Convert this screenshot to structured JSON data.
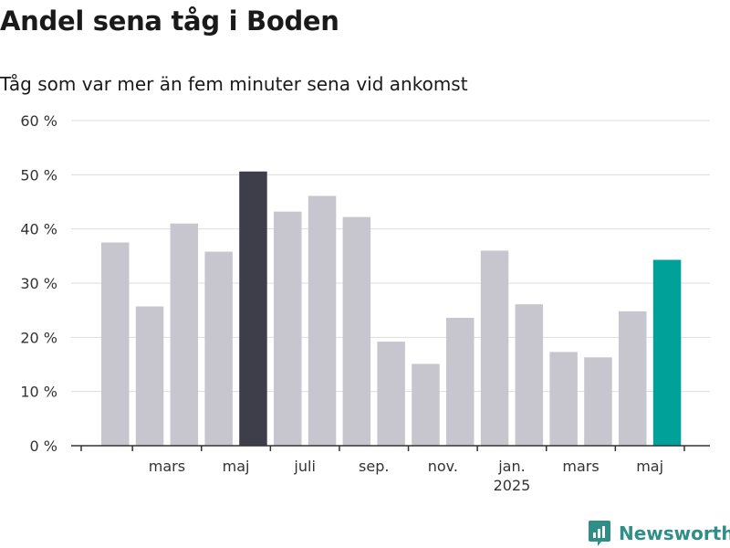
{
  "header": {
    "title": "Andel sena tåg i Boden",
    "subtitle": "Tåg som var mer än fem minuter sena vid ankomst"
  },
  "brand": {
    "name": "Newsworthy",
    "icon": "newsworthy-logo-icon",
    "color": "#2f8f88"
  },
  "chart_data": {
    "type": "bar",
    "title": "Andel sena tåg i Boden",
    "subtitle": "Tåg som var mer än fem minuter sena vid ankomst",
    "xlabel": "",
    "ylabel": "",
    "ylim": [
      0,
      60
    ],
    "yticks": [
      0,
      10,
      20,
      30,
      40,
      50,
      60
    ],
    "ytick_labels": [
      "0 %",
      "10 %",
      "20 %",
      "30 %",
      "40 %",
      "50 %",
      "60 %"
    ],
    "grid": true,
    "values": [
      37.5,
      25.7,
      41.0,
      35.8,
      50.6,
      43.2,
      46.1,
      42.2,
      19.2,
      15.1,
      23.6,
      36.0,
      26.1,
      17.3,
      16.3,
      24.8,
      34.3
    ],
    "highlight": {
      "max_index": 4,
      "latest_index": 16
    },
    "x_tick_labels": [
      {
        "after_bar": 1,
        "label": "mars"
      },
      {
        "after_bar": 3,
        "label": "maj"
      },
      {
        "after_bar": 5,
        "label": "juli"
      },
      {
        "after_bar": 7,
        "label": "sep."
      },
      {
        "after_bar": 9,
        "label": "nov."
      },
      {
        "after_bar": 11,
        "label": "jan.",
        "sublabel": "2025"
      },
      {
        "after_bar": 13,
        "label": "mars"
      },
      {
        "after_bar": 15,
        "label": "maj"
      }
    ],
    "colors": {
      "default": "#c7c6ce",
      "highlight_max": "#3e3d4a",
      "highlight_latest": "#00a199",
      "grid": "#dddddd",
      "axis": "#333333",
      "text": "#333333"
    }
  }
}
